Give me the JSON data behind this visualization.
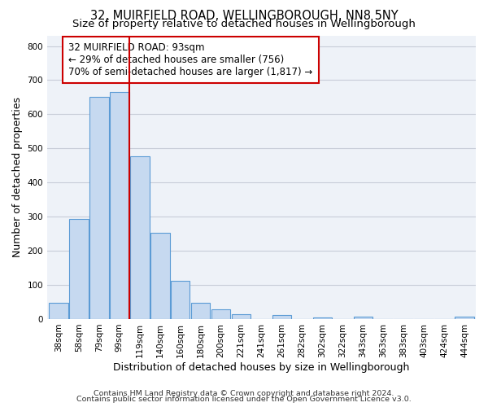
{
  "title": "32, MUIRFIELD ROAD, WELLINGBOROUGH, NN8 5NY",
  "subtitle": "Size of property relative to detached houses in Wellingborough",
  "xlabel": "Distribution of detached houses by size in Wellingborough",
  "ylabel": "Number of detached properties",
  "bin_labels": [
    "38sqm",
    "58sqm",
    "79sqm",
    "99sqm",
    "119sqm",
    "140sqm",
    "160sqm",
    "180sqm",
    "200sqm",
    "221sqm",
    "241sqm",
    "261sqm",
    "282sqm",
    "302sqm",
    "322sqm",
    "343sqm",
    "363sqm",
    "383sqm",
    "403sqm",
    "424sqm",
    "444sqm"
  ],
  "bar_values": [
    47,
    293,
    652,
    666,
    477,
    253,
    113,
    48,
    28,
    15,
    0,
    12,
    0,
    5,
    0,
    8,
    0,
    0,
    0,
    0,
    6
  ],
  "bar_color": "#c6d9f0",
  "bar_edge_color": "#5b9bd5",
  "vline_color": "#cc0000",
  "annotation_text": "32 MUIRFIELD ROAD: 93sqm\n← 29% of detached houses are smaller (756)\n70% of semi-detached houses are larger (1,817) →",
  "annotation_box_edge_color": "#cc0000",
  "annotation_box_face_color": "#ffffff",
  "ylim": [
    0,
    830
  ],
  "yticks": [
    0,
    100,
    200,
    300,
    400,
    500,
    600,
    700,
    800
  ],
  "footer_lines": [
    "Contains HM Land Registry data © Crown copyright and database right 2024.",
    "Contains public sector information licensed under the Open Government Licence v3.0."
  ],
  "bg_color": "#ffffff",
  "plot_bg_color": "#eef2f8",
  "grid_color": "#c8cdd8",
  "title_fontsize": 10.5,
  "subtitle_fontsize": 9.5,
  "axis_label_fontsize": 9,
  "tick_fontsize": 7.5,
  "footer_fontsize": 6.8,
  "annotation_fontsize": 8.5
}
